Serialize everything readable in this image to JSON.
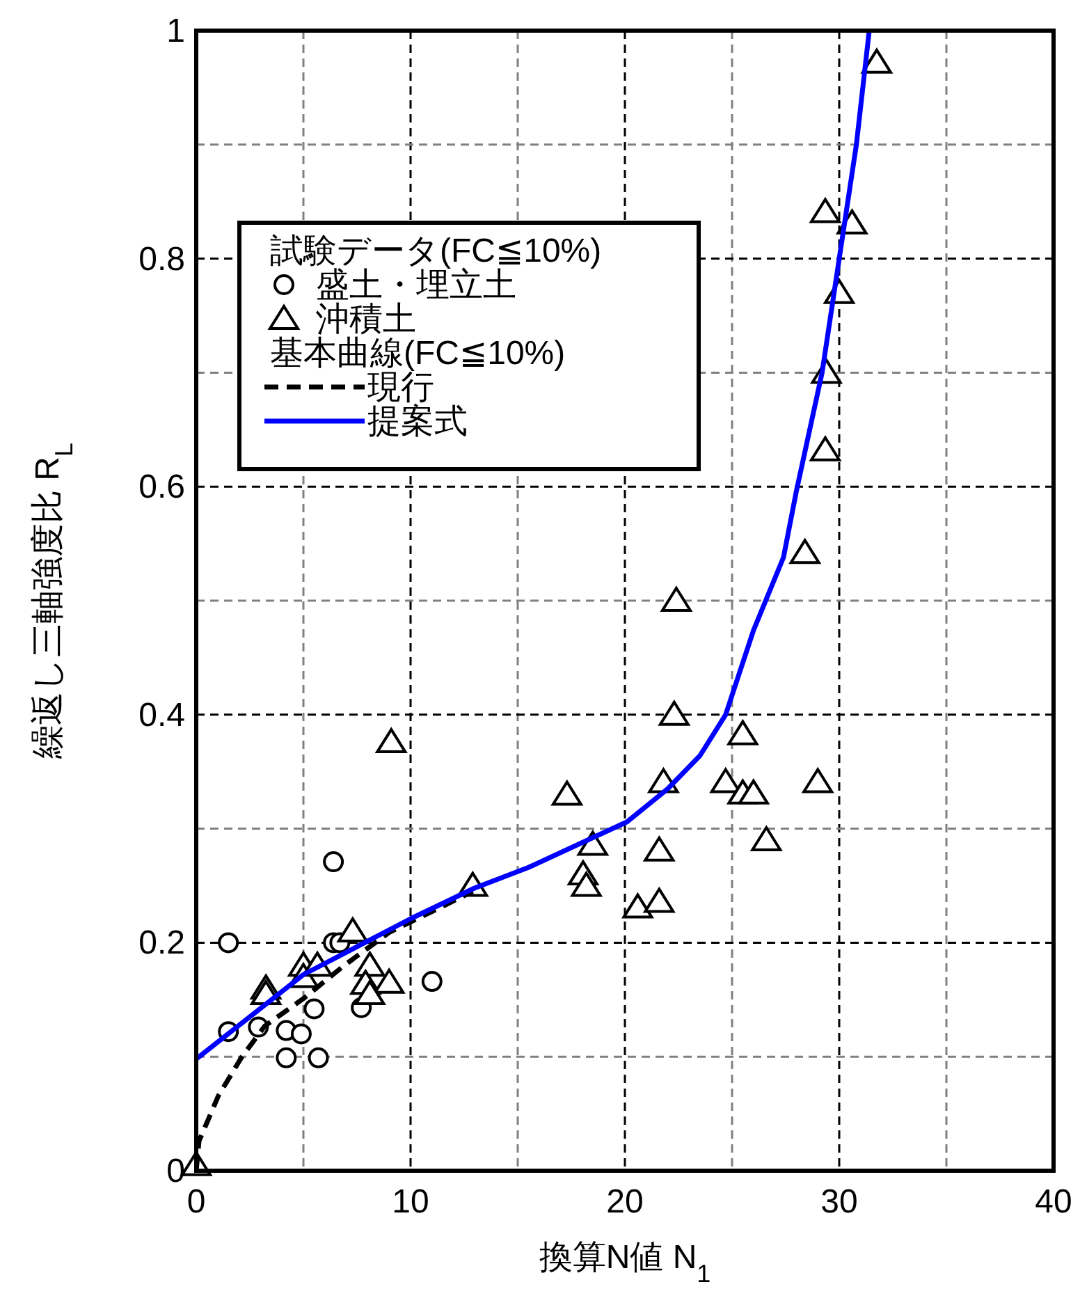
{
  "chart_data": {
    "type": "scatter",
    "xlabel": "換算N値 N$_{1}$",
    "ylabel": "繰返し三軸強度比 R$_{L}$",
    "legend_title": "試験データ(FC≦10%)",
    "annotations": [
      "基本曲線(FC≦10%)"
    ],
    "xlim": [
      0,
      40
    ],
    "ylim": [
      0,
      1
    ],
    "xticks": [
      0,
      {
        "value": 5,
        "label": null
      },
      10,
      {
        "value": 15,
        "label": null
      },
      20,
      {
        "value": 25,
        "label": null
      },
      30,
      {
        "value": 35,
        "label": null
      },
      40
    ],
    "yticks": [
      0,
      {
        "value": 0.1,
        "label": null
      },
      0.2,
      {
        "value": 0.3,
        "label": null
      },
      0.4,
      {
        "value": 0.5,
        "label": null
      },
      0.6,
      {
        "value": 0.7,
        "label": null
      },
      0.8,
      {
        "value": 0.9,
        "label": null
      },
      1
    ],
    "grid": true,
    "legend": "top left",
    "series": [
      {
        "name": "盛土・埋立土",
        "marker": "circle",
        "color": "#000000",
        "x": [
          1.5,
          1.5,
          2.9,
          4.2,
          4.9,
          4.2,
          5.7,
          5.5,
          6.4,
          6.4,
          6.7,
          7.7,
          11.0
        ],
        "values": [
          0.2,
          0.122,
          0.126,
          0.123,
          0.12,
          0.099,
          0.099,
          0.142,
          0.271,
          0.2,
          0.2,
          0.143,
          0.166
        ]
      },
      {
        "name": "沖積土",
        "marker": "triangle",
        "color": "#000000",
        "x": [
          0,
          3.25,
          3.25,
          5.0,
          5.0,
          5.65,
          7.3,
          8.1,
          7.9,
          9.0,
          8.1,
          12.9,
          9.1,
          17.3,
          18.5,
          18.05,
          18.2,
          20.6,
          21.6,
          21.6,
          21.8,
          22.3,
          22.4,
          24.7,
          25.5,
          25.5,
          26.0,
          26.6,
          29.0,
          31.75,
          29.35,
          30.6,
          30.0,
          29.4,
          29.35,
          28.4
        ],
        "values": [
          0.005,
          0.16,
          0.155,
          0.18,
          0.17,
          0.18,
          0.21,
          0.18,
          0.164,
          0.165,
          0.155,
          0.25,
          0.376,
          0.33,
          0.286,
          0.26,
          0.25,
          0.231,
          0.236,
          0.281,
          0.341,
          0.4,
          0.5,
          0.341,
          0.383,
          0.331,
          0.331,
          0.29,
          0.341,
          0.972,
          0.841,
          0.831,
          0.77,
          0.7,
          0.632,
          0.542
        ]
      },
      {
        "name": "現行",
        "type": "line",
        "line_style": "dashed",
        "marker": "none",
        "color": "#000000",
        "x": [
          0,
          0.13,
          1.04,
          2.1,
          3.2,
          5,
          6.9,
          9,
          11.4,
          12.9
        ],
        "values": [
          0,
          0.026,
          0.066,
          0.099,
          0.127,
          0.151,
          0.18,
          0.209,
          0.231,
          0.245
        ]
      },
      {
        "name": "提案式",
        "type": "line",
        "line_style": "solid",
        "marker": "none",
        "color": "#0000ff",
        "x": [
          0,
          5,
          10,
          13,
          15.5,
          20.1,
          22,
          23.5,
          24.7,
          26,
          27.4,
          28,
          29.2,
          30,
          30.8,
          31.4
        ],
        "values": [
          0.098,
          0.172,
          0.221,
          0.248,
          0.266,
          0.306,
          0.335,
          0.364,
          0.4,
          0.474,
          0.538,
          0.596,
          0.7,
          0.8,
          0.9,
          1.0
        ]
      }
    ]
  }
}
